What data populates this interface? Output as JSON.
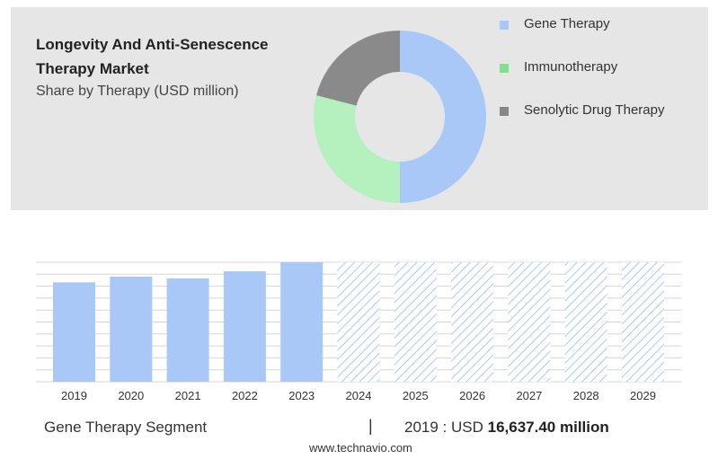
{
  "header": {
    "title_line1": "Longevity And Anti-Senescence",
    "title_line2": "Therapy Market",
    "subtitle": "Share by Therapy (USD million)"
  },
  "legend": [
    {
      "label": "Gene Therapy",
      "color": "#a9c8f7"
    },
    {
      "label": "Immunotherapy",
      "color": "#7fe08f"
    },
    {
      "label": "Senolytic Drug Therapy",
      "color": "#888888"
    }
  ],
  "footer": {
    "segment": "Gene Therapy Segment",
    "separator": "|",
    "value_prefix": "2019 : USD",
    "value_bold": "16,637.40 million",
    "site": "www.technavio.com"
  },
  "chart_data": [
    {
      "type": "pie",
      "donut": true,
      "categories": [
        "Gene Therapy",
        "Immunotherapy",
        "Senolytic Drug Therapy"
      ],
      "values": [
        50,
        29,
        21
      ],
      "colors": [
        "#a9c8f7",
        "#b5f0bf",
        "#8a8a8a"
      ]
    },
    {
      "type": "bar",
      "categories": [
        "2019",
        "2020",
        "2021",
        "2022",
        "2023",
        "2024",
        "2025",
        "2026",
        "2027",
        "2028",
        "2029"
      ],
      "values": [
        16637.4,
        17600,
        17300,
        18500,
        20000,
        20000,
        20000,
        20000,
        20000,
        20000,
        20000
      ],
      "forecast_from": "2024",
      "ylim": [
        0,
        20000
      ],
      "grid": true,
      "color": "#a9c8f7"
    }
  ]
}
